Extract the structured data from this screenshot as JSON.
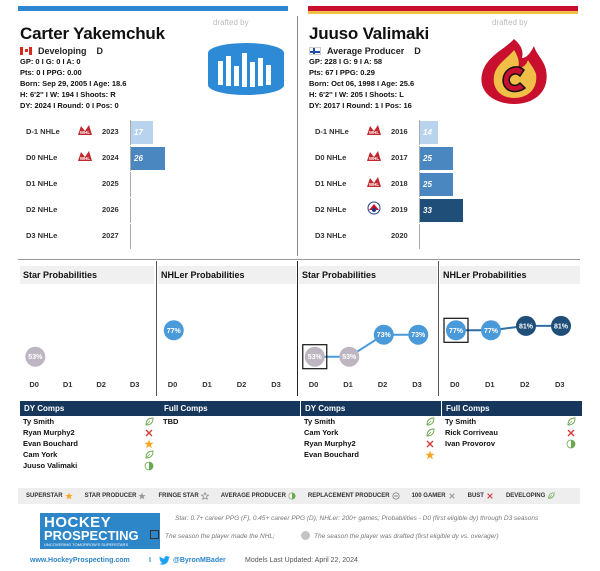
{
  "players": [
    {
      "name": "Carter Yakemchuk",
      "flag": "canada",
      "type": "Developing",
      "position": "D",
      "drafted_by_label": "drafted by",
      "team_logo": "puck-city-icon",
      "stats": [
        "GP: 0 I G: 0 I A: 0",
        "Pts: 0 I PPG: 0.00",
        "Born: Sep 29, 2005 I Age: 18.6",
        "H: 6'2'' I W: 194 I Shoots: R",
        "DY: 2024 I Round: 0 I Pos: 0"
      ],
      "nhle": [
        {
          "label": "D-1 NHLe",
          "year": "2023",
          "value": 17,
          "team_icon": "chl-team-icon"
        },
        {
          "label": "D0 NHLe",
          "year": "2024",
          "value": 26,
          "team_icon": "chl-team-icon"
        },
        {
          "label": "D1 NHLe",
          "year": "2025",
          "value": null,
          "team_icon": ""
        },
        {
          "label": "D2 NHLe",
          "year": "2026",
          "value": null,
          "team_icon": ""
        },
        {
          "label": "D3 NHLe",
          "year": "2027",
          "value": null,
          "team_icon": ""
        }
      ]
    },
    {
      "name": "Juuso Valimaki",
      "flag": "finland",
      "type": "Average Producer",
      "position": "D",
      "drafted_by_label": "drafted by",
      "team_logo": "flames-logo-icon",
      "stats": [
        "GP: 228 I G: 9 I A: 58",
        "Pts: 67 I PPG: 0.29",
        "Born: Oct 06, 1998 I Age: 25.6",
        "H: 6'2'' I W: 205 I Shoots: L",
        "DY: 2017 I Round: 1 I Pos: 16"
      ],
      "nhle": [
        {
          "label": "D-1 NHLe",
          "year": "2016",
          "value": 14,
          "team_icon": "chl-team-icon"
        },
        {
          "label": "D0 NHLe",
          "year": "2017",
          "value": 25,
          "team_icon": "chl-team-icon"
        },
        {
          "label": "D1 NHLe",
          "year": "2018",
          "value": 25,
          "team_icon": "chl-team-icon"
        },
        {
          "label": "D2 NHLe",
          "year": "2019",
          "value": 33,
          "team_icon": "ahl-team-icon"
        },
        {
          "label": "D3 NHLe",
          "year": "2020",
          "value": null,
          "team_icon": ""
        }
      ]
    }
  ],
  "probability_panels": [
    {
      "title": "Star Probabilities",
      "values": [
        53,
        null,
        null,
        null
      ],
      "made_nhl_index": null
    },
    {
      "title": "NHLer Probabilities",
      "values": [
        77,
        null,
        null,
        null
      ],
      "made_nhl_index": null
    },
    {
      "title": "Star Probabilities",
      "values": [
        53,
        53,
        73,
        73
      ],
      "made_nhl_index": 0
    },
    {
      "title": "NHLer Probabilities",
      "values": [
        77,
        77,
        81,
        81
      ],
      "made_nhl_index": 0
    }
  ],
  "x_labels": [
    "D0",
    "D1",
    "D2",
    "D3"
  ],
  "comp_panels": [
    {
      "title": "DY Comps",
      "items": [
        {
          "name": "Ty Smith",
          "icon": "leaf-icon"
        },
        {
          "name": "Ryan Murphy2",
          "icon": "x-icon"
        },
        {
          "name": "Evan Bouchard",
          "icon": "star-orange-icon"
        },
        {
          "name": "Cam York",
          "icon": "leaf-icon"
        },
        {
          "name": "Juuso Valimaki",
          "icon": "half-circle-icon"
        }
      ]
    },
    {
      "title": "Full Comps",
      "items": [
        {
          "name": "TBD",
          "icon": ""
        }
      ]
    },
    {
      "title": "DY Comps",
      "items": [
        {
          "name": "Ty Smith",
          "icon": "leaf-icon"
        },
        {
          "name": "Cam York",
          "icon": "leaf-icon"
        },
        {
          "name": "Ryan Murphy2",
          "icon": "x-icon"
        },
        {
          "name": "Evan Bouchard",
          "icon": "star-orange-icon"
        }
      ]
    },
    {
      "title": "Full Comps",
      "items": [
        {
          "name": "Ty Smith",
          "icon": "leaf-icon"
        },
        {
          "name": "Rick Corriveau",
          "icon": "x-icon"
        },
        {
          "name": "Ivan Provorov",
          "icon": "half-circle-icon"
        }
      ]
    }
  ],
  "legend": [
    {
      "label": "SUPERSTAR",
      "icon": "star-orange-icon"
    },
    {
      "label": "STAR PRODUCER",
      "icon": "star-gray-icon"
    },
    {
      "label": "FRINGE STAR",
      "icon": "star-outline-icon"
    },
    {
      "label": "AVERAGE PRODUCER",
      "icon": "half-circle-icon"
    },
    {
      "label": "REPLACEMENT PRODUCER",
      "icon": "minus-circle-icon"
    },
    {
      "label": "100 GAMER",
      "icon": "x-gray-icon"
    },
    {
      "label": "BUST",
      "icon": "x-icon"
    },
    {
      "label": "DEVELOPING",
      "icon": "leaf-icon"
    }
  ],
  "branding": {
    "logo_line1": "HOCKEY",
    "logo_line2": "PROSPECTING",
    "logo_tagline": "UNCOVERING TOMORROW'S SUPERSTARS",
    "note_definition": "Star: 0.7+ career PPG (F), 0.45+ career PPG (D); NHLer: 200+ games; Probabilities - D0 (first eligible dy) through D3 seasons",
    "note_made_nhl": "The season the player made the NHL;",
    "note_drafted": "The season the player was drafted (first eligible dy vs. overager)",
    "website": "www.HockeyProspecting.com",
    "separator": "I",
    "twitter": "@ByronMBader",
    "updated": "Models Last Updated: April 22, 2024"
  },
  "colors": {
    "left_accent": "#2e86d1",
    "right_accent": "#c8102e",
    "right_accent2": "#f1be48",
    "comp_header": "#17365c",
    "star_dot": "#bdb6c2",
    "nhl_dot_light": "#4a9ad9",
    "nhl_dot_dark": "#1f4e79"
  }
}
